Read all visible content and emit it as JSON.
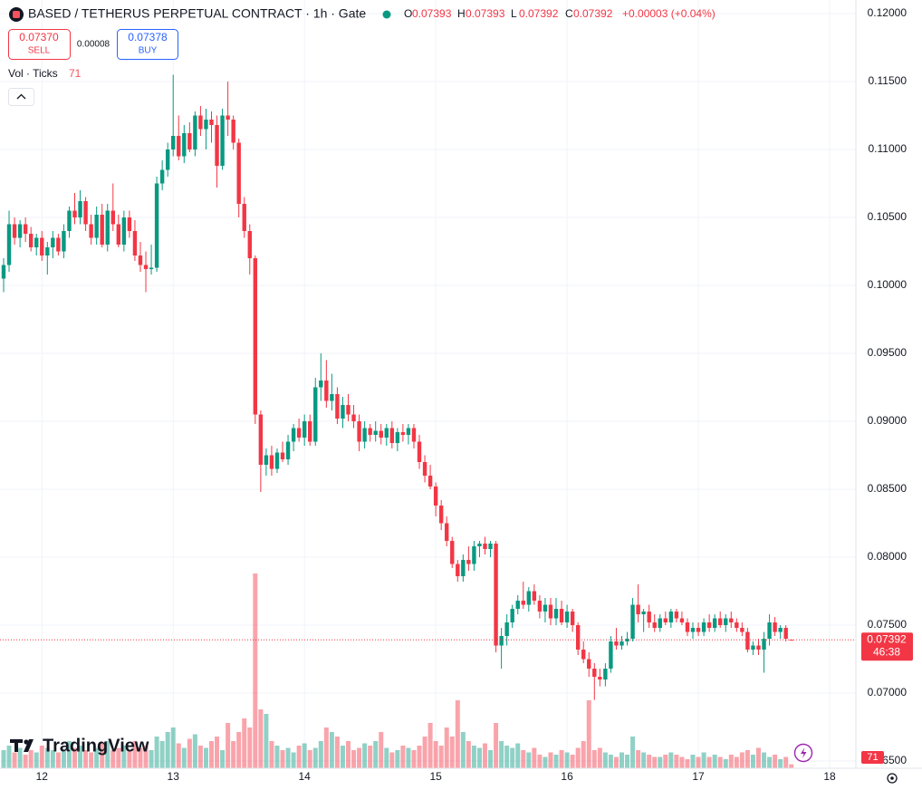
{
  "chart_data": {
    "type": "candlestick",
    "title": "BASED / TETHERUS PERPETUAL CONTRACT · 1h · Gate",
    "ohlc_letters": [
      "O",
      "H",
      "L",
      "C"
    ],
    "change": "+0.00003 (+0.04%)",
    "sell": {
      "price": "0.07370",
      "label": "SELL"
    },
    "spread": "0.00008",
    "buy": {
      "price": "0.07378",
      "label": "BUY"
    },
    "indicator": "Vol · Ticks",
    "countdown": "46:38",
    "logo": "TradingView",
    "up_color": "#089981",
    "down_color": "#f23645",
    "grid": true,
    "candles": [
      [
        0.1005,
        0.102,
        0.0995,
        0.1015
      ],
      [
        0.1015,
        0.1055,
        0.101,
        0.1045
      ],
      [
        0.1045,
        0.105,
        0.103,
        0.1035
      ],
      [
        0.1035,
        0.1048,
        0.1028,
        0.1045
      ],
      [
        0.1045,
        0.105,
        0.1032,
        0.1038
      ],
      [
        0.1038,
        0.1043,
        0.1025,
        0.1028
      ],
      [
        0.1028,
        0.1038,
        0.1022,
        0.1035
      ],
      [
        0.1035,
        0.104,
        0.1018,
        0.1022
      ],
      [
        0.1022,
        0.1032,
        0.1008,
        0.1028
      ],
      [
        0.1028,
        0.104,
        0.102,
        0.1035
      ],
      [
        0.1035,
        0.1038,
        0.1022,
        0.1025
      ],
      [
        0.1025,
        0.1045,
        0.102,
        0.104
      ],
      [
        0.104,
        0.1058,
        0.1035,
        0.1055
      ],
      [
        0.1055,
        0.1068,
        0.1045,
        0.105
      ],
      [
        0.105,
        0.107,
        0.1045,
        0.1062
      ],
      [
        0.1062,
        0.1065,
        0.104,
        0.1045
      ],
      [
        0.1045,
        0.1052,
        0.103,
        0.1035
      ],
      [
        0.1035,
        0.1058,
        0.103,
        0.1052
      ],
      [
        0.1052,
        0.106,
        0.1028,
        0.103
      ],
      [
        0.103,
        0.106,
        0.1025,
        0.1055
      ],
      [
        0.1055,
        0.1075,
        0.104,
        0.1045
      ],
      [
        0.1045,
        0.1052,
        0.1028,
        0.103
      ],
      [
        0.103,
        0.1055,
        0.1025,
        0.105
      ],
      [
        0.105,
        0.1055,
        0.1035,
        0.104
      ],
      [
        0.104,
        0.1048,
        0.1018,
        0.1022
      ],
      [
        0.1022,
        0.1032,
        0.101,
        0.1015
      ],
      [
        0.1015,
        0.1025,
        0.0995,
        0.1012
      ],
      [
        0.1012,
        0.103,
        0.1008,
        0.1013
      ],
      [
        0.1013,
        0.108,
        0.101,
        0.1075
      ],
      [
        0.1075,
        0.1092,
        0.107,
        0.1085
      ],
      [
        0.1085,
        0.1105,
        0.108,
        0.11
      ],
      [
        0.11,
        0.1155,
        0.1095,
        0.111
      ],
      [
        0.111,
        0.1125,
        0.1092,
        0.1095
      ],
      [
        0.1095,
        0.1118,
        0.109,
        0.1112
      ],
      [
        0.1112,
        0.112,
        0.1098,
        0.11
      ],
      [
        0.11,
        0.1128,
        0.1095,
        0.1125
      ],
      [
        0.1125,
        0.1132,
        0.111,
        0.1115
      ],
      [
        0.1115,
        0.113,
        0.11,
        0.1122
      ],
      [
        0.1122,
        0.1128,
        0.1105,
        0.1118
      ],
      [
        0.1118,
        0.1125,
        0.1072,
        0.1088
      ],
      [
        0.1088,
        0.113,
        0.1085,
        0.1125
      ],
      [
        0.1125,
        0.115,
        0.111,
        0.1122
      ],
      [
        0.1122,
        0.1125,
        0.11,
        0.1105
      ],
      [
        0.1105,
        0.1108,
        0.105,
        0.106
      ],
      [
        0.106,
        0.1065,
        0.1035,
        0.104
      ],
      [
        0.104,
        0.1045,
        0.1008,
        0.102
      ],
      [
        0.102,
        0.1022,
        0.0898,
        0.0905
      ],
      [
        0.0905,
        0.0908,
        0.0848,
        0.0868
      ],
      [
        0.0868,
        0.088,
        0.086,
        0.0875
      ],
      [
        0.0875,
        0.0882,
        0.086,
        0.0865
      ],
      [
        0.0865,
        0.088,
        0.0862,
        0.0877
      ],
      [
        0.0877,
        0.0885,
        0.087,
        0.0872
      ],
      [
        0.0872,
        0.089,
        0.0868,
        0.0885
      ],
      [
        0.0885,
        0.0898,
        0.0878,
        0.0895
      ],
      [
        0.0895,
        0.0902,
        0.0885,
        0.0888
      ],
      [
        0.0888,
        0.0905,
        0.0882,
        0.09
      ],
      [
        0.09,
        0.0905,
        0.0882,
        0.0885
      ],
      [
        0.0885,
        0.0932,
        0.0882,
        0.0925
      ],
      [
        0.0925,
        0.095,
        0.0915,
        0.093
      ],
      [
        0.093,
        0.0945,
        0.091,
        0.0915
      ],
      [
        0.0915,
        0.0935,
        0.0908,
        0.092
      ],
      [
        0.092,
        0.0925,
        0.0898,
        0.0902
      ],
      [
        0.0902,
        0.0918,
        0.0895,
        0.0912
      ],
      [
        0.0912,
        0.092,
        0.09,
        0.0905
      ],
      [
        0.0905,
        0.0912,
        0.0895,
        0.09
      ],
      [
        0.09,
        0.0905,
        0.0878,
        0.0885
      ],
      [
        0.0885,
        0.09,
        0.088,
        0.0895
      ],
      [
        0.0895,
        0.0898,
        0.0885,
        0.089
      ],
      [
        0.089,
        0.09,
        0.0885,
        0.0893
      ],
      [
        0.0893,
        0.0898,
        0.0883,
        0.0888
      ],
      [
        0.0888,
        0.0898,
        0.0882,
        0.0895
      ],
      [
        0.0895,
        0.09,
        0.088,
        0.0884
      ],
      [
        0.0884,
        0.0895,
        0.0878,
        0.0892
      ],
      [
        0.0892,
        0.0898,
        0.0885,
        0.089
      ],
      [
        0.089,
        0.0898,
        0.0883,
        0.0895
      ],
      [
        0.0895,
        0.0898,
        0.088,
        0.0885
      ],
      [
        0.0885,
        0.089,
        0.0865,
        0.087
      ],
      [
        0.087,
        0.0875,
        0.0855,
        0.086
      ],
      [
        0.086,
        0.0868,
        0.085,
        0.0852
      ],
      [
        0.0852,
        0.0855,
        0.083,
        0.0838
      ],
      [
        0.0838,
        0.0842,
        0.082,
        0.0825
      ],
      [
        0.0825,
        0.083,
        0.0808,
        0.0812
      ],
      [
        0.0812,
        0.0815,
        0.0792,
        0.0795
      ],
      [
        0.0795,
        0.0798,
        0.0782,
        0.0786
      ],
      [
        0.0786,
        0.0802,
        0.0782,
        0.0798
      ],
      [
        0.0798,
        0.0808,
        0.079,
        0.0795
      ],
      [
        0.0795,
        0.0812,
        0.079,
        0.0808
      ],
      [
        0.0808,
        0.0812,
        0.08,
        0.081
      ],
      [
        0.081,
        0.0815,
        0.0802,
        0.0806
      ],
      [
        0.0806,
        0.0812,
        0.08,
        0.081
      ],
      [
        0.081,
        0.0812,
        0.073,
        0.0735
      ],
      [
        0.0735,
        0.0748,
        0.0718,
        0.0742
      ],
      [
        0.0742,
        0.0758,
        0.0735,
        0.0752
      ],
      [
        0.0752,
        0.0765,
        0.0748,
        0.0762
      ],
      [
        0.0762,
        0.0772,
        0.0758,
        0.0768
      ],
      [
        0.0768,
        0.0782,
        0.0762,
        0.0765
      ],
      [
        0.0765,
        0.0778,
        0.076,
        0.0775
      ],
      [
        0.0775,
        0.078,
        0.0765,
        0.0768
      ],
      [
        0.0768,
        0.0772,
        0.0755,
        0.076
      ],
      [
        0.076,
        0.077,
        0.0752,
        0.0765
      ],
      [
        0.0765,
        0.077,
        0.075,
        0.0755
      ],
      [
        0.0755,
        0.077,
        0.075,
        0.0762
      ],
      [
        0.0762,
        0.0768,
        0.075,
        0.0752
      ],
      [
        0.0752,
        0.0765,
        0.0748,
        0.076
      ],
      [
        0.076,
        0.0762,
        0.0745,
        0.075
      ],
      [
        0.075,
        0.0752,
        0.0728,
        0.0732
      ],
      [
        0.0732,
        0.0738,
        0.0722,
        0.0725
      ],
      [
        0.0725,
        0.073,
        0.0712,
        0.0718
      ],
      [
        0.0718,
        0.0722,
        0.0695,
        0.0712
      ],
      [
        0.0712,
        0.0718,
        0.0705,
        0.071
      ],
      [
        0.071,
        0.0722,
        0.0705,
        0.0718
      ],
      [
        0.0718,
        0.0742,
        0.0715,
        0.0738
      ],
      [
        0.0738,
        0.0748,
        0.0732,
        0.0735
      ],
      [
        0.0735,
        0.0742,
        0.0732,
        0.0738
      ],
      [
        0.0738,
        0.0745,
        0.0735,
        0.074
      ],
      [
        0.074,
        0.077,
        0.0738,
        0.0765
      ],
      [
        0.0765,
        0.078,
        0.0752,
        0.0758
      ],
      [
        0.0758,
        0.0762,
        0.0745,
        0.076
      ],
      [
        0.076,
        0.0765,
        0.0748,
        0.0752
      ],
      [
        0.0752,
        0.0758,
        0.0745,
        0.0748
      ],
      [
        0.0748,
        0.0758,
        0.0745,
        0.0755
      ],
      [
        0.0755,
        0.076,
        0.075,
        0.0752
      ],
      [
        0.0752,
        0.0762,
        0.0748,
        0.076
      ],
      [
        0.076,
        0.0762,
        0.0752,
        0.0755
      ],
      [
        0.0755,
        0.076,
        0.075,
        0.0752
      ],
      [
        0.0752,
        0.0755,
        0.0742,
        0.0745
      ],
      [
        0.0745,
        0.0752,
        0.074,
        0.0748
      ],
      [
        0.0748,
        0.0752,
        0.0742,
        0.0745
      ],
      [
        0.0745,
        0.0755,
        0.0742,
        0.0752
      ],
      [
        0.0752,
        0.0758,
        0.0745,
        0.0748
      ],
      [
        0.0748,
        0.0758,
        0.0745,
        0.0755
      ],
      [
        0.0755,
        0.076,
        0.0748,
        0.075
      ],
      [
        0.075,
        0.0758,
        0.0745,
        0.0755
      ],
      [
        0.0755,
        0.076,
        0.0748,
        0.0752
      ],
      [
        0.0752,
        0.0755,
        0.0745,
        0.0748
      ],
      [
        0.0748,
        0.0752,
        0.0742,
        0.0745
      ],
      [
        0.0745,
        0.0748,
        0.073,
        0.0732
      ],
      [
        0.0732,
        0.0738,
        0.0728,
        0.0735
      ],
      [
        0.0735,
        0.074,
        0.0728,
        0.0732
      ],
      [
        0.0732,
        0.0745,
        0.0715,
        0.074
      ],
      [
        0.074,
        0.0758,
        0.0735,
        0.0752
      ],
      [
        0.0752,
        0.0756,
        0.0742,
        0.0745
      ],
      [
        0.0745,
        0.075,
        0.074,
        0.0748
      ],
      [
        0.0748,
        0.075,
        0.0738,
        0.074
      ],
      [
        0.07393,
        0.07393,
        0.07392,
        0.07392
      ]
    ],
    "volumes": [
      320,
      400,
      280,
      360,
      240,
      320,
      280,
      400,
      360,
      320,
      280,
      320,
      480,
      360,
      400,
      320,
      280,
      360,
      440,
      480,
      320,
      360,
      400,
      320,
      480,
      360,
      400,
      320,
      560,
      480,
      640,
      720,
      440,
      360,
      520,
      600,
      400,
      360,
      480,
      560,
      320,
      800,
      480,
      640,
      880,
      720,
      3440,
      1040,
      960,
      480,
      400,
      320,
      360,
      280,
      400,
      440,
      320,
      360,
      480,
      720,
      640,
      560,
      400,
      480,
      320,
      360,
      440,
      400,
      480,
      640,
      360,
      280,
      320,
      400,
      360,
      320,
      400,
      560,
      800,
      480,
      400,
      720,
      560,
      1200,
      640,
      480,
      400,
      360,
      440,
      320,
      800,
      480,
      400,
      360,
      440,
      320,
      280,
      360,
      240,
      200,
      280,
      240,
      320,
      280,
      240,
      360,
      480,
      1200,
      320,
      360,
      280,
      240,
      200,
      280,
      240,
      560,
      320,
      280,
      240,
      200,
      200,
      240,
      280,
      240,
      200,
      160,
      240,
      200,
      280,
      200,
      240,
      200,
      160,
      240,
      200,
      280,
      320,
      240,
      360,
      280,
      200,
      240,
      160,
      200,
      71
    ],
    "volume_ylim": [
      0,
      4000
    ],
    "xlim": [
      -0.66,
      155.8
    ],
    "xticks": [
      {
        "value": 7,
        "label": "12"
      },
      {
        "value": 31,
        "label": "13"
      },
      {
        "value": 55,
        "label": "14"
      },
      {
        "value": 79,
        "label": "15"
      },
      {
        "value": 103,
        "label": "16"
      },
      {
        "value": 127,
        "label": "17"
      },
      {
        "value": 151,
        "label": "18"
      }
    ],
    "ylim": [
      0.06447,
      0.121
    ],
    "yticks": [
      {
        "value": 0.065,
        "label": "0.06500"
      },
      {
        "value": 0.07,
        "label": "0.07000"
      },
      {
        "value": 0.075,
        "label": "0.07500"
      },
      {
        "value": 0.08,
        "label": "0.08000"
      },
      {
        "value": 0.085,
        "label": "0.08500"
      },
      {
        "value": 0.09,
        "label": "0.09000"
      },
      {
        "value": 0.095,
        "label": "0.09500"
      },
      {
        "value": 0.1,
        "label": "0.10000"
      },
      {
        "value": 0.105,
        "label": "0.10500"
      },
      {
        "value": 0.11,
        "label": "0.11000"
      },
      {
        "value": 0.115,
        "label": "0.11500"
      },
      {
        "value": 0.12,
        "label": "0.12000"
      }
    ]
  }
}
